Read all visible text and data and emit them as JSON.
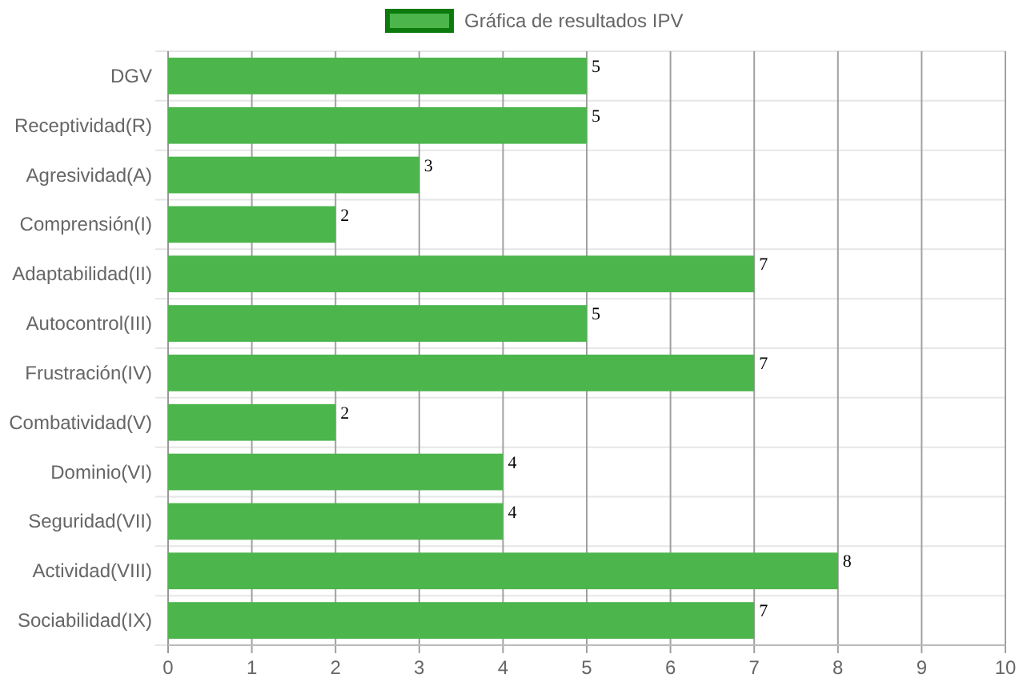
{
  "chart_data": {
    "type": "bar",
    "orientation": "horizontal",
    "categories": [
      "DGV",
      "Receptividad(R)",
      "Agresividad(A)",
      "Comprensión(I)",
      "Adaptabilidad(II)",
      "Autocontrol(III)",
      "Frustración(IV)",
      "Combatividad(V)",
      "Dominio(VI)",
      "Seguridad(VII)",
      "Actividad(VIII)",
      "Sociabilidad(IX)"
    ],
    "series": [
      {
        "name": "Gráfica de resultados IPV",
        "color": "#4cb54c",
        "values": [
          5,
          5,
          3,
          2,
          7,
          5,
          7,
          2,
          4,
          4,
          8,
          7
        ]
      }
    ],
    "xlim": [
      0,
      10
    ],
    "xticks": [
      0,
      1,
      2,
      3,
      4,
      5,
      6,
      7,
      8,
      9,
      10
    ],
    "grid": true,
    "legend": "top",
    "data_labels": true
  }
}
